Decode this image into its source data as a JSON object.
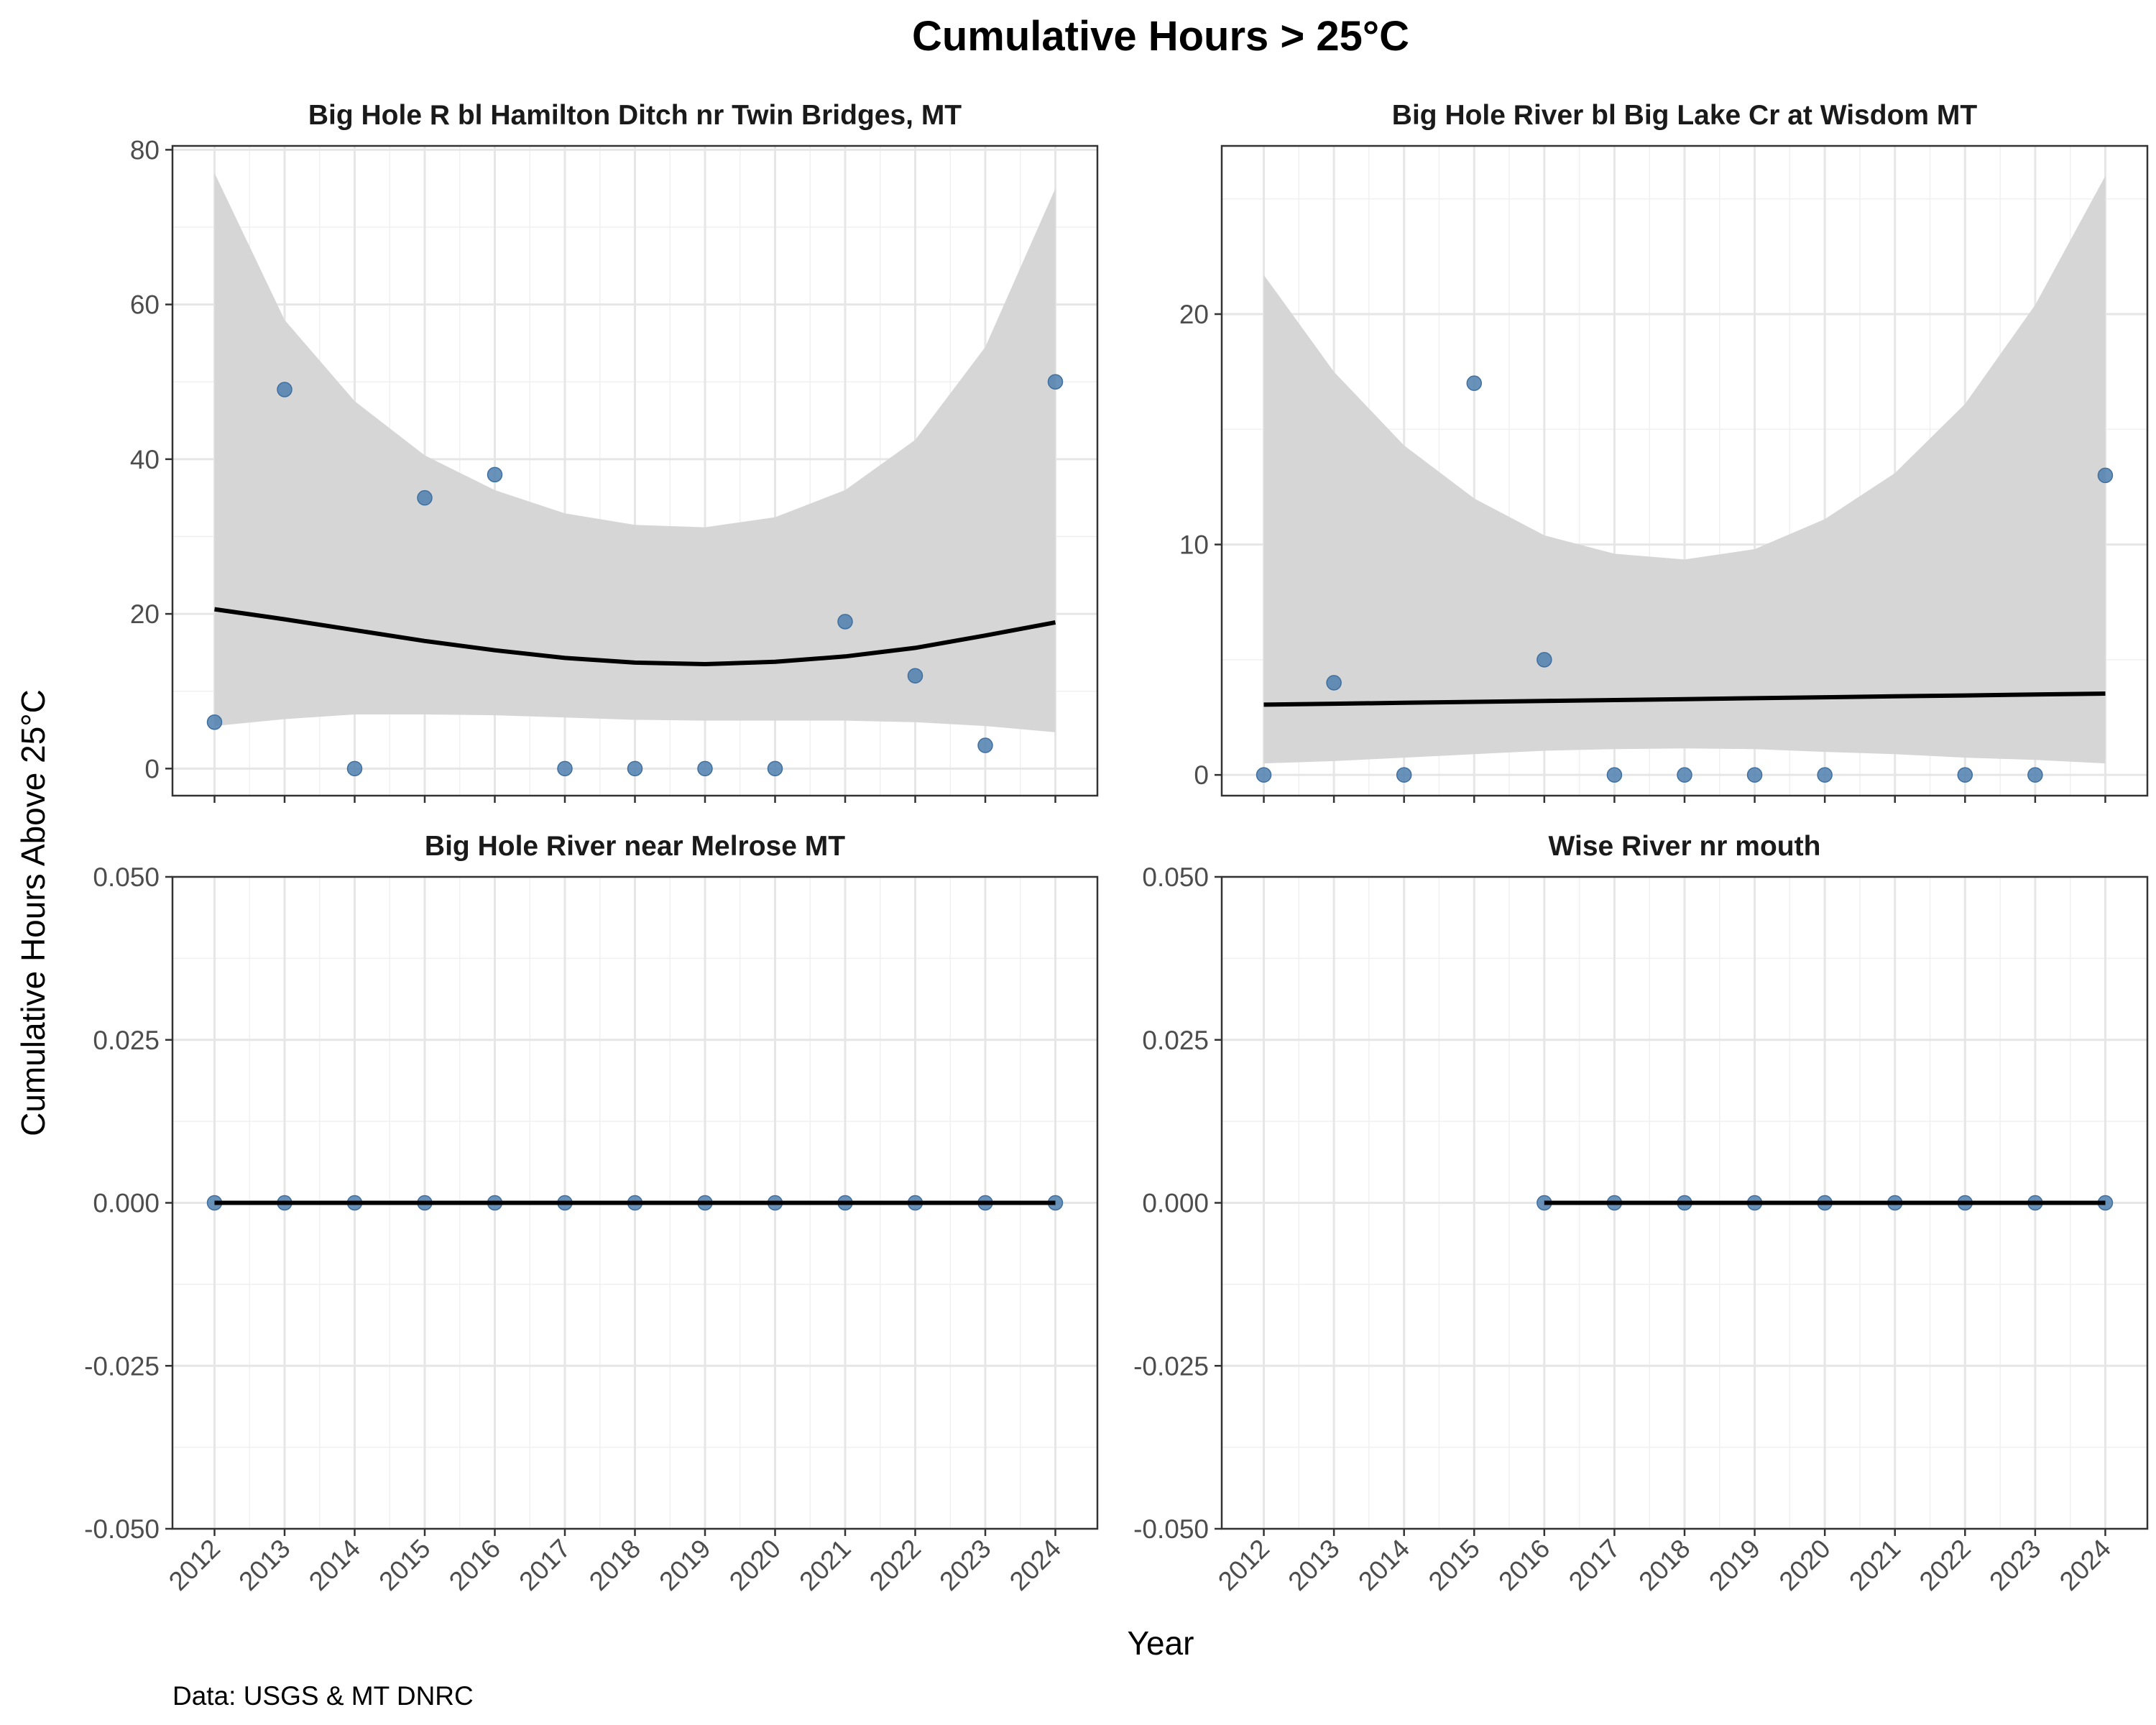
{
  "chart_data": {
    "type": "scatter",
    "title": "Cumulative Hours > 25°C",
    "xlabel": "Year",
    "ylabel": "Cumulative Hours Above 25°C",
    "caption": "Data: USGS & MT DNRC",
    "x_ticks": [
      "2012",
      "2013",
      "2014",
      "2015",
      "2016",
      "2017",
      "2018",
      "2019",
      "2020",
      "2021",
      "2022",
      "2023",
      "2024"
    ],
    "grid": true,
    "point_color": "#4f7faf",
    "fit_color": "#000000",
    "band_color": "#d6d6d6",
    "panels": [
      {
        "title": "Big Hole R bl Hamilton Ditch nr Twin Bridges, MT",
        "ylim": [
          -3.5,
          80.5
        ],
        "y_ticks": [
          0,
          20,
          40,
          60,
          80
        ],
        "y_tick_labels": [
          "0",
          "20",
          "40",
          "60",
          "80"
        ],
        "points": [
          {
            "x": 2012,
            "y": 6
          },
          {
            "x": 2013,
            "y": 49
          },
          {
            "x": 2014,
            "y": 0
          },
          {
            "x": 2015,
            "y": 35
          },
          {
            "x": 2016,
            "y": 38
          },
          {
            "x": 2017,
            "y": 0
          },
          {
            "x": 2018,
            "y": 0
          },
          {
            "x": 2019,
            "y": 0
          },
          {
            "x": 2020,
            "y": 0
          },
          {
            "x": 2021,
            "y": 19
          },
          {
            "x": 2022,
            "y": 12
          },
          {
            "x": 2023,
            "y": 3
          },
          {
            "x": 2024,
            "y": 50
          }
        ],
        "fit": [
          {
            "x": 2012,
            "y": 20.6,
            "lo": 5.5,
            "hi": 77.0
          },
          {
            "x": 2013,
            "y": 19.3,
            "lo": 6.4,
            "hi": 58.0
          },
          {
            "x": 2014,
            "y": 17.9,
            "lo": 7.0,
            "hi": 47.5
          },
          {
            "x": 2015,
            "y": 16.5,
            "lo": 7.0,
            "hi": 40.5
          },
          {
            "x": 2016,
            "y": 15.3,
            "lo": 6.9,
            "hi": 36.0
          },
          {
            "x": 2017,
            "y": 14.3,
            "lo": 6.6,
            "hi": 33.0
          },
          {
            "x": 2018,
            "y": 13.7,
            "lo": 6.3,
            "hi": 31.5
          },
          {
            "x": 2019,
            "y": 13.5,
            "lo": 6.2,
            "hi": 31.2
          },
          {
            "x": 2020,
            "y": 13.8,
            "lo": 6.2,
            "hi": 32.5
          },
          {
            "x": 2021,
            "y": 14.5,
            "lo": 6.2,
            "hi": 36.0
          },
          {
            "x": 2022,
            "y": 15.6,
            "lo": 6.0,
            "hi": 42.5
          },
          {
            "x": 2023,
            "y": 17.2,
            "lo": 5.5,
            "hi": 54.5
          },
          {
            "x": 2024,
            "y": 18.9,
            "lo": 4.7,
            "hi": 75.0
          }
        ]
      },
      {
        "title": "Big Hole River bl Big Lake Cr at Wisdom MT",
        "ylim": [
          -0.9,
          27.3
        ],
        "y_ticks": [
          0,
          10,
          20
        ],
        "y_tick_labels": [
          "0",
          "10",
          "20"
        ],
        "points": [
          {
            "x": 2012,
            "y": 0
          },
          {
            "x": 2013,
            "y": 4
          },
          {
            "x": 2014,
            "y": 0
          },
          {
            "x": 2015,
            "y": 17
          },
          {
            "x": 2016,
            "y": 5
          },
          {
            "x": 2017,
            "y": 0
          },
          {
            "x": 2018,
            "y": 0
          },
          {
            "x": 2019,
            "y": 0
          },
          {
            "x": 2020,
            "y": 0
          },
          {
            "x": 2022,
            "y": 0
          },
          {
            "x": 2023,
            "y": 0
          },
          {
            "x": 2024,
            "y": 13
          }
        ],
        "fit": [
          {
            "x": 2012,
            "y": 3.05,
            "lo": 0.5,
            "hi": 21.7
          },
          {
            "x": 2013,
            "y": 3.09,
            "lo": 0.6,
            "hi": 17.5
          },
          {
            "x": 2014,
            "y": 3.13,
            "lo": 0.75,
            "hi": 14.3
          },
          {
            "x": 2015,
            "y": 3.17,
            "lo": 0.9,
            "hi": 12.0
          },
          {
            "x": 2016,
            "y": 3.21,
            "lo": 1.05,
            "hi": 10.4
          },
          {
            "x": 2017,
            "y": 3.25,
            "lo": 1.12,
            "hi": 9.6
          },
          {
            "x": 2018,
            "y": 3.29,
            "lo": 1.15,
            "hi": 9.35
          },
          {
            "x": 2019,
            "y": 3.33,
            "lo": 1.12,
            "hi": 9.8
          },
          {
            "x": 2020,
            "y": 3.37,
            "lo": 1.0,
            "hi": 11.1
          },
          {
            "x": 2021,
            "y": 3.41,
            "lo": 0.9,
            "hi": 13.1
          },
          {
            "x": 2022,
            "y": 3.45,
            "lo": 0.75,
            "hi": 16.1
          },
          {
            "x": 2023,
            "y": 3.49,
            "lo": 0.65,
            "hi": 20.4
          },
          {
            "x": 2024,
            "y": 3.53,
            "lo": 0.5,
            "hi": 26.0
          }
        ]
      },
      {
        "title": "Big Hole River near Melrose MT",
        "ylim": [
          -0.05,
          0.05
        ],
        "y_ticks": [
          -0.05,
          -0.025,
          0,
          0.025,
          0.05
        ],
        "y_tick_labels": [
          "-0.050",
          "-0.025",
          "0.000",
          "0.025",
          "0.050"
        ],
        "points": [
          {
            "x": 2012,
            "y": 0
          },
          {
            "x": 2013,
            "y": 0
          },
          {
            "x": 2014,
            "y": 0
          },
          {
            "x": 2015,
            "y": 0
          },
          {
            "x": 2016,
            "y": 0
          },
          {
            "x": 2017,
            "y": 0
          },
          {
            "x": 2018,
            "y": 0
          },
          {
            "x": 2019,
            "y": 0
          },
          {
            "x": 2020,
            "y": 0
          },
          {
            "x": 2021,
            "y": 0
          },
          {
            "x": 2022,
            "y": 0
          },
          {
            "x": 2023,
            "y": 0
          },
          {
            "x": 2024,
            "y": 0
          }
        ],
        "fit": [
          {
            "x": 2012,
            "y": 0,
            "lo": 0,
            "hi": 0
          },
          {
            "x": 2024,
            "y": 0,
            "lo": 0,
            "hi": 0
          }
        ]
      },
      {
        "title": "Wise River nr mouth",
        "ylim": [
          -0.05,
          0.05
        ],
        "y_ticks": [
          -0.05,
          -0.025,
          0,
          0.025,
          0.05
        ],
        "y_tick_labels": [
          "-0.050",
          "-0.025",
          "0.000",
          "0.025",
          "0.050"
        ],
        "points": [
          {
            "x": 2016,
            "y": 0
          },
          {
            "x": 2017,
            "y": 0
          },
          {
            "x": 2018,
            "y": 0
          },
          {
            "x": 2019,
            "y": 0
          },
          {
            "x": 2020,
            "y": 0
          },
          {
            "x": 2021,
            "y": 0
          },
          {
            "x": 2022,
            "y": 0
          },
          {
            "x": 2023,
            "y": 0
          },
          {
            "x": 2024,
            "y": 0
          }
        ],
        "fit": [
          {
            "x": 2016,
            "y": 0,
            "lo": 0,
            "hi": 0
          },
          {
            "x": 2024,
            "y": 0,
            "lo": 0,
            "hi": 0
          }
        ]
      }
    ]
  }
}
